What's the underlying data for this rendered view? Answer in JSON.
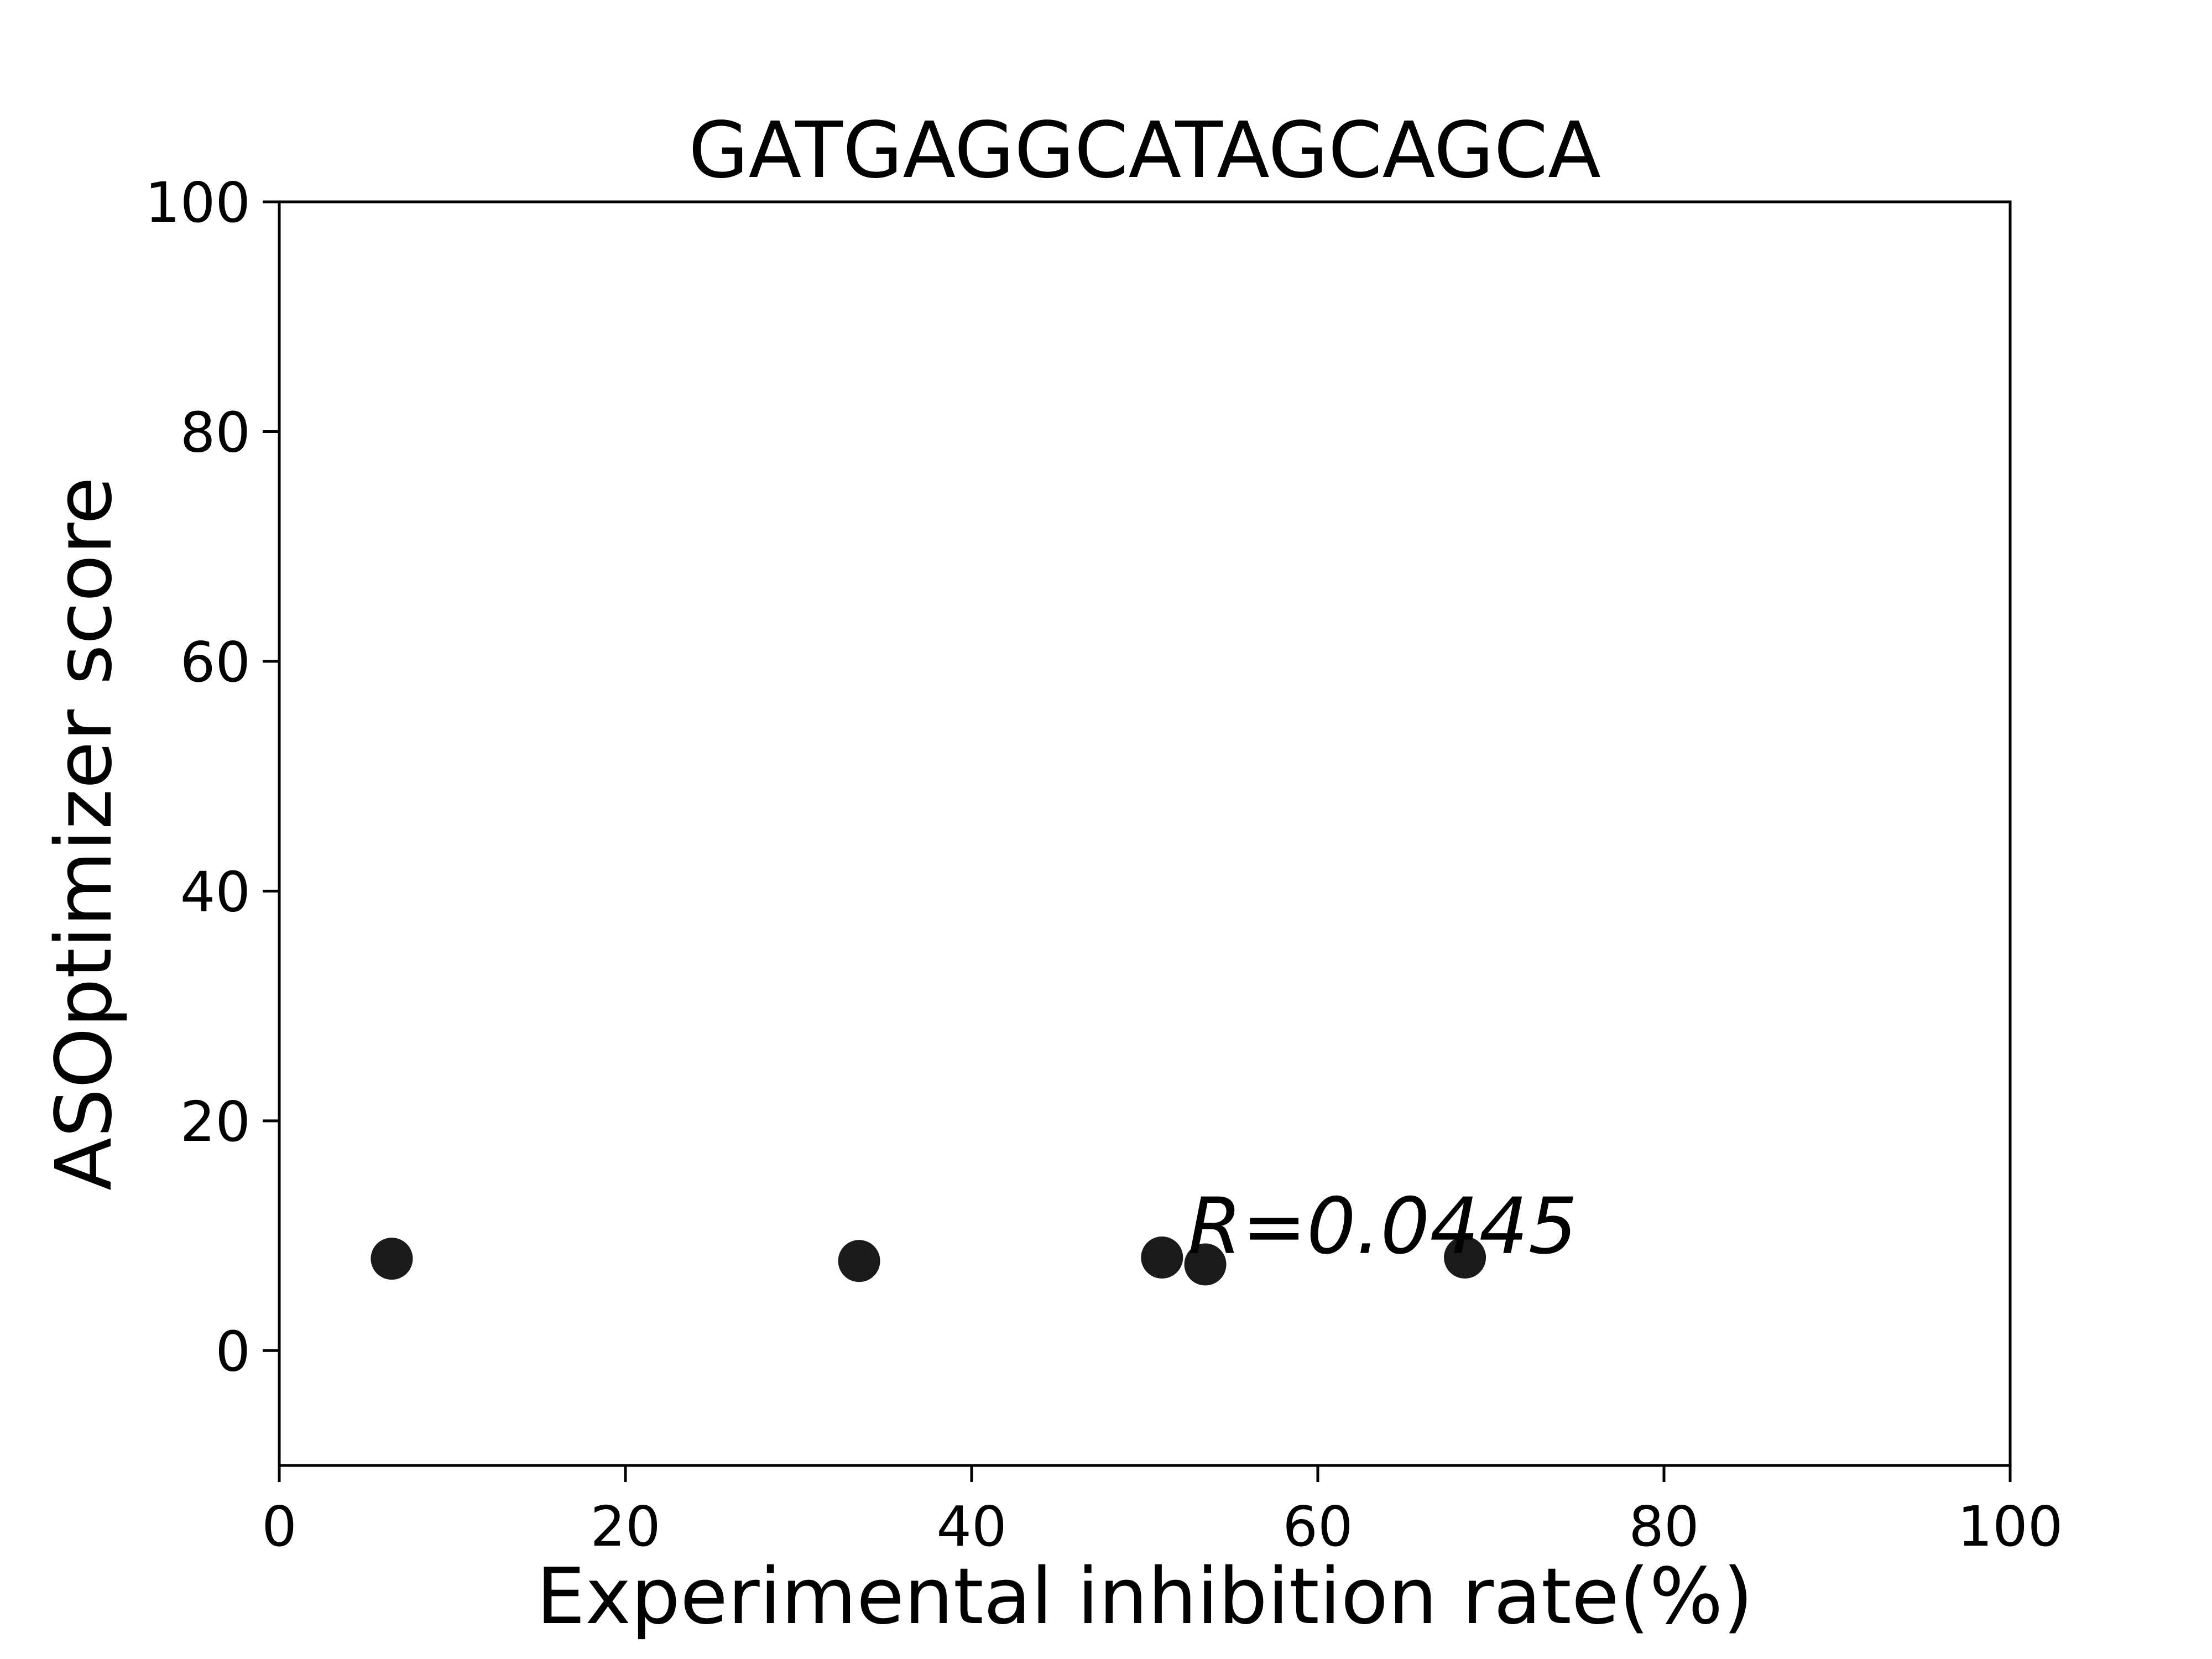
{
  "chart_data": {
    "type": "scatter",
    "title": "GATGAGGCATAGCAGCA",
    "xlabel": "Experimental inhibition rate(%)",
    "ylabel": "ASOptimizer score",
    "xlim": [
      0,
      100
    ],
    "ylim": [
      -10,
      100
    ],
    "xticks": [
      "0",
      "20",
      "40",
      "60",
      "80",
      "100"
    ],
    "yticks": [
      "0",
      "20",
      "40",
      "60",
      "80",
      "100"
    ],
    "grid": false,
    "series": [
      {
        "marker_color": "#1a1a1a",
        "points": [
          {
            "x": 6.5,
            "y": 8.0
          },
          {
            "x": 33.5,
            "y": 7.8
          },
          {
            "x": 51.0,
            "y": 8.1
          },
          {
            "x": 53.5,
            "y": 7.5
          },
          {
            "x": 68.5,
            "y": 8.1
          }
        ]
      }
    ],
    "annotation": {
      "text": "R=0.0445",
      "x": 52.5,
      "y": 8.5
    }
  }
}
